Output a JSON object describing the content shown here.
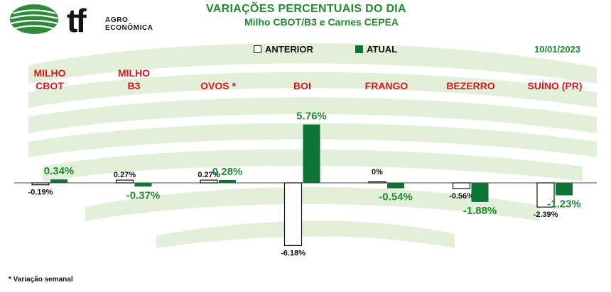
{
  "header": {
    "brand_mark": "tf",
    "brand_line1": "AGRO",
    "brand_line2": "ECONÔMICA",
    "title": "VARIAÇÕES PERCENTUAIS DO DIA",
    "subtitle": "Milho CBOT/B3 e Carnes CEPEA",
    "date": "10/01/2023"
  },
  "legend": {
    "previous": "ANTERIOR",
    "current": "ATUAL"
  },
  "footnote": "* Variação semanal",
  "colors": {
    "current": "#0c7436",
    "previous_fill": "#ffffff",
    "previous_stroke": "#111111",
    "category_label": "#e0161e",
    "current_label": "#1f8a2e",
    "previous_label": "#111111",
    "title": "#1f8a2e"
  },
  "chart_data": {
    "type": "bar",
    "categories": [
      [
        "MILHO",
        "CBOT"
      ],
      [
        "MILHO",
        "B3"
      ],
      [
        "OVOS *"
      ],
      [
        "BOI"
      ],
      [
        "FRANGO"
      ],
      [
        "BEZERRO"
      ],
      [
        "SUÍNO (PR)"
      ]
    ],
    "series": [
      {
        "name": "ANTERIOR",
        "values": [
          -0.19,
          0.27,
          0.27,
          -6.18,
          0,
          -0.56,
          -2.39
        ],
        "labels": [
          "-0.19%",
          "0.27%",
          "0.27%",
          "-6.18%",
          "0%",
          "-0.56%",
          "-2.39%"
        ]
      },
      {
        "name": "ATUAL",
        "values": [
          0.34,
          -0.37,
          0.28,
          5.76,
          -0.54,
          -1.88,
          -1.23
        ],
        "labels": [
          "0.34%",
          "-0.37%",
          "0.28%",
          "5.76%",
          "-0.54%",
          "-1.88%",
          "-1.23%"
        ]
      }
    ],
    "ylim": [
      -7.5,
      6.5
    ],
    "grid": false,
    "legend_position": "top"
  }
}
